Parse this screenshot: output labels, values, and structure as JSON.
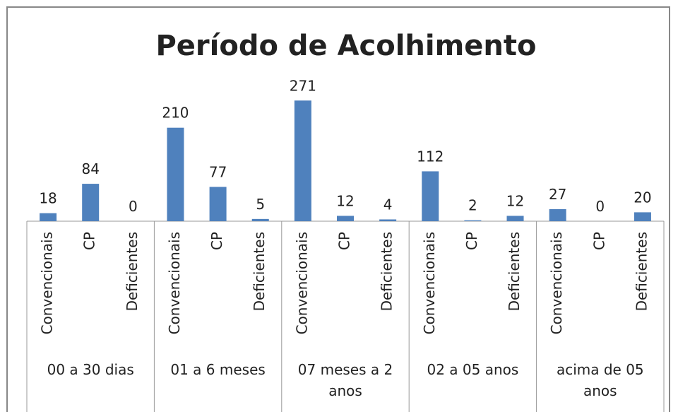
{
  "chart_data": {
    "type": "bar",
    "title": "Período de Acolhimento",
    "color": "#4f81bd",
    "groups": [
      {
        "label": "00 a 30 dias",
        "categories": [
          "Convencionais",
          "CP",
          "Deficientes"
        ],
        "values": [
          18,
          84,
          0
        ]
      },
      {
        "label": "01 a 6 meses",
        "categories": [
          "Convencionais",
          "CP",
          "Deficientes"
        ],
        "values": [
          210,
          77,
          5
        ]
      },
      {
        "label": "07 meses a 2 anos",
        "categories": [
          "Convencionais",
          "CP",
          "Deficientes"
        ],
        "values": [
          271,
          12,
          4
        ]
      },
      {
        "label": "02 a 05 anos",
        "categories": [
          "Convencionais",
          "CP",
          "Deficientes"
        ],
        "values": [
          112,
          2,
          12
        ]
      },
      {
        "label": "acima de 05 anos",
        "categories": [
          "Convencionais",
          "CP",
          "Deficientes"
        ],
        "values": [
          27,
          0,
          20
        ]
      }
    ]
  }
}
